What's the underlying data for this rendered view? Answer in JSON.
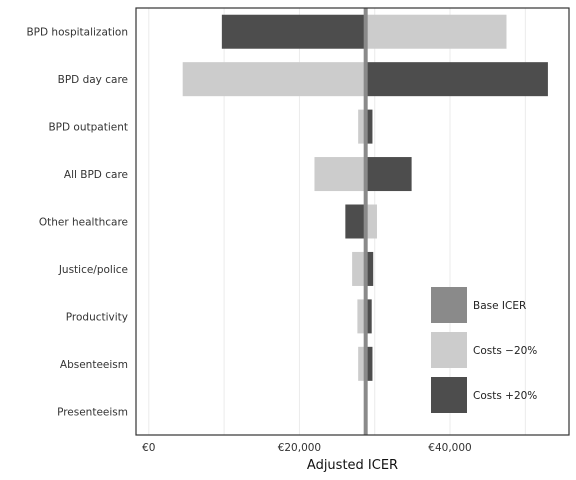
{
  "chart_data": {
    "type": "bar",
    "orientation": "horizontal",
    "subtype": "tornado",
    "title": "",
    "xlabel": "Adjusted ICER",
    "ylabel": "",
    "xlim": [
      -1700,
      55800
    ],
    "x_ticks": [
      0,
      20000,
      40000
    ],
    "x_tick_labels": [
      "€0",
      "€20,000",
      "€40,000"
    ],
    "grid": true,
    "legend_position": "bottom-right",
    "base_icer": 28800,
    "categories": [
      "BPD hospitalization",
      "BPD day care",
      "BPD outpatient",
      "All BPD care",
      "Other healthcare",
      "Justice/police",
      "Productivity",
      "Absenteeism",
      "Presenteeism"
    ],
    "series": [
      {
        "name": "Costs −20%",
        "values": [
          47500,
          4500,
          27800,
          22000,
          30300,
          27000,
          27700,
          27800,
          28700
        ]
      },
      {
        "name": "Costs +20%",
        "values": [
          9700,
          53000,
          29700,
          34900,
          26100,
          29800,
          29600,
          29700,
          28900
        ]
      }
    ],
    "legend": [
      {
        "key": "base",
        "label": "Base ICER",
        "color": "#8a8a8a"
      },
      {
        "key": "minus",
        "label": "Costs −20%",
        "color": "#cccccc"
      },
      {
        "key": "plus",
        "label": "Costs +20%",
        "color": "#4d4d4d"
      }
    ]
  }
}
